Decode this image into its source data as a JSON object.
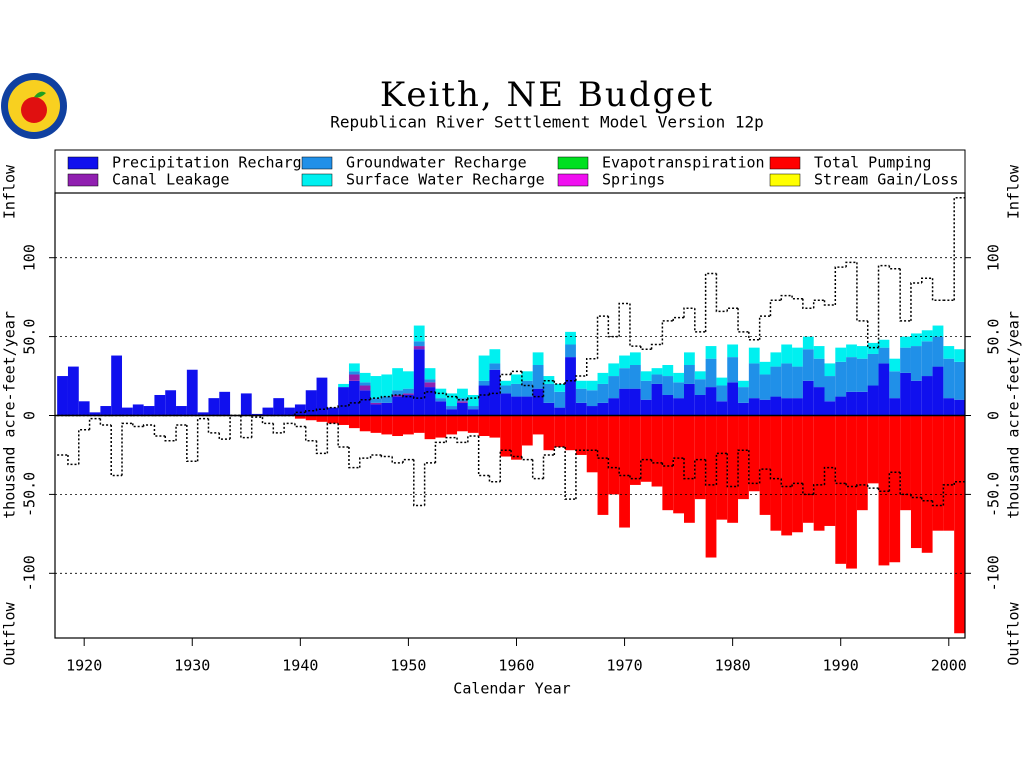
{
  "chart_data": {
    "type": "bar",
    "title": "Keith, NE Budget",
    "subtitle": "Republican River Settlement Model Version 12p",
    "xlabel": "Calendar Year",
    "ylabel": "thousand acre-feet/year",
    "inflow_label": "Inflow",
    "outflow_label": "Outflow",
    "x": [
      1918,
      1919,
      1920,
      1921,
      1922,
      1923,
      1924,
      1925,
      1926,
      1927,
      1928,
      1929,
      1930,
      1931,
      1932,
      1933,
      1934,
      1935,
      1936,
      1937,
      1938,
      1939,
      1940,
      1941,
      1942,
      1943,
      1944,
      1945,
      1946,
      1947,
      1948,
      1949,
      1950,
      1951,
      1952,
      1953,
      1954,
      1955,
      1956,
      1957,
      1958,
      1959,
      1960,
      1961,
      1962,
      1963,
      1964,
      1965,
      1966,
      1967,
      1968,
      1969,
      1970,
      1971,
      1972,
      1973,
      1974,
      1975,
      1976,
      1977,
      1978,
      1979,
      1980,
      1981,
      1982,
      1983,
      1984,
      1985,
      1986,
      1987,
      1988,
      1989,
      1990,
      1991,
      1992,
      1993,
      1994,
      1995,
      1996,
      1997,
      1998,
      1999,
      2000,
      2001
    ],
    "xlim": [
      1917.3,
      2001.5
    ],
    "xticks": [
      1920,
      1930,
      1940,
      1950,
      1960,
      1970,
      1980,
      1990,
      2000
    ],
    "ylim": [
      -141,
      141
    ],
    "yticks": [
      -100,
      {
        "value": -50,
        "label": "-50.0"
      },
      0,
      {
        "value": 50,
        "label": "50.0"
      },
      100
    ],
    "grid": true,
    "series": [
      {
        "name": "Precipitation Recharge",
        "color": "#1010ee",
        "values": [
          25,
          31,
          9,
          2,
          6,
          38,
          5,
          7,
          6,
          13,
          16,
          6,
          29,
          2,
          11,
          15,
          0,
          14,
          1,
          5,
          11,
          5,
          7,
          16,
          24,
          5,
          18,
          22,
          16,
          7,
          8,
          12,
          13,
          42,
          18,
          9,
          4,
          8,
          4,
          19,
          29,
          14,
          12,
          12,
          17,
          8,
          5,
          37,
          8,
          6,
          8,
          11,
          17,
          17,
          10,
          20,
          13,
          11,
          20,
          13,
          18,
          9,
          21,
          8,
          11,
          10,
          12,
          11,
          11,
          22,
          18,
          9,
          12,
          15,
          15,
          19,
          33,
          11,
          27,
          22,
          25,
          31,
          11,
          10
        ]
      },
      {
        "name": "Canal Leakage",
        "color": "#9020b0",
        "values": [
          0,
          0,
          0,
          0,
          0,
          0,
          0,
          0,
          0,
          0,
          0,
          0,
          0,
          0,
          0,
          0,
          0,
          0,
          0,
          0,
          0,
          0,
          0,
          0,
          0,
          0,
          0,
          4,
          3,
          1,
          0,
          1,
          1,
          2,
          3,
          0,
          0,
          1,
          0,
          0,
          0,
          0,
          0,
          0,
          0,
          0,
          0,
          0,
          0,
          0,
          0,
          0,
          0,
          0,
          0,
          0,
          0,
          0,
          0,
          0,
          0,
          0,
          0,
          0,
          0,
          0,
          0,
          0,
          0,
          0,
          0,
          0,
          0,
          0,
          0,
          0,
          0,
          0,
          0,
          0,
          0,
          0,
          0,
          0
        ]
      },
      {
        "name": "Groundwater Recharge",
        "color": "#2090e8",
        "values": [
          0,
          0,
          0,
          0,
          0,
          0,
          0,
          0,
          0,
          0,
          0,
          0,
          0,
          0,
          0,
          0,
          0,
          0,
          0,
          0,
          0,
          0,
          0,
          0,
          0,
          0,
          0,
          2,
          2,
          3,
          4,
          3,
          3,
          3,
          2,
          2,
          2,
          2,
          2,
          3,
          4,
          5,
          8,
          10,
          15,
          12,
          10,
          8,
          9,
          10,
          12,
          14,
          13,
          15,
          12,
          6,
          12,
          10,
          12,
          10,
          18,
          10,
          16,
          10,
          22,
          16,
          19,
          22,
          20,
          20,
          18,
          16,
          22,
          22,
          21,
          20,
          10,
          17,
          16,
          22,
          22,
          19,
          25,
          24
        ]
      },
      {
        "name": "Surface Water Recharge",
        "color": "#00f0f0",
        "values": [
          0,
          0,
          0,
          0,
          0,
          0,
          0,
          0,
          0,
          0,
          0,
          0,
          0,
          0,
          0,
          0,
          0,
          0,
          0,
          0,
          0,
          0,
          0,
          0,
          0,
          0,
          2,
          5,
          6,
          14,
          14,
          14,
          11,
          10,
          7,
          6,
          8,
          6,
          7,
          16,
          9,
          3,
          6,
          6,
          8,
          5,
          5,
          8,
          5,
          6,
          7,
          8,
          8,
          8,
          6,
          4,
          7,
          6,
          8,
          5,
          8,
          5,
          8,
          4,
          10,
          8,
          9,
          12,
          12,
          8,
          8,
          8,
          9,
          8,
          8,
          7,
          5,
          8,
          7,
          8,
          7,
          7,
          8,
          8
        ]
      },
      {
        "name": "Evapotranspiration",
        "color": "#00e020",
        "values": [
          0,
          0,
          0,
          0,
          0,
          0,
          0,
          0,
          0,
          0,
          0,
          0,
          0,
          0,
          0,
          0,
          0,
          0,
          0,
          0,
          0,
          0,
          0,
          0,
          0,
          0,
          0,
          0,
          0,
          0,
          0,
          0,
          0,
          0,
          0,
          0,
          0,
          0,
          0,
          0,
          0,
          0,
          0,
          0,
          0,
          0,
          0,
          0,
          0,
          0,
          0,
          0,
          0,
          0,
          0,
          0,
          0,
          0,
          0,
          0,
          0,
          0,
          0,
          0,
          0,
          0,
          0,
          0,
          0,
          0,
          0,
          0,
          0,
          0,
          0,
          0,
          0,
          0,
          0,
          0,
          0,
          0,
          0,
          0
        ]
      },
      {
        "name": "Springs",
        "color": "#f010f0",
        "values": [
          0,
          0,
          0,
          0,
          0,
          0,
          0,
          0,
          0,
          0,
          0,
          0,
          0,
          0,
          0,
          0,
          0,
          0,
          0,
          0,
          0,
          0,
          0,
          0,
          0,
          0,
          0,
          0,
          0,
          0,
          0,
          0,
          0,
          0,
          0,
          0,
          0,
          0,
          0,
          0,
          0,
          0,
          0,
          0,
          0,
          0,
          0,
          0,
          0,
          0,
          0,
          0,
          0,
          0,
          0,
          0,
          0,
          0,
          0,
          0,
          0,
          0,
          0,
          0,
          0,
          0,
          0,
          0,
          0,
          0,
          0,
          0,
          0,
          0,
          0,
          0,
          0,
          0,
          0,
          0,
          0,
          0,
          0,
          0
        ]
      },
      {
        "name": "Total Pumping",
        "color": "#ff0000",
        "values": [
          0,
          0,
          0,
          0,
          0,
          0,
          0,
          0,
          0,
          0,
          0,
          0,
          0,
          0,
          0,
          0,
          0,
          0,
          0,
          0,
          0,
          0,
          -2,
          -3,
          -4,
          -5,
          -6,
          -8,
          -10,
          -11,
          -12,
          -13,
          -12,
          -11,
          -15,
          -14,
          -12,
          -10,
          -11,
          -13,
          -14,
          -26,
          -28,
          -19,
          -12,
          -22,
          -20,
          -22,
          -25,
          -36,
          -63,
          -50,
          -71,
          -44,
          -42,
          -45,
          -60,
          -62,
          -68,
          -53,
          -90,
          -66,
          -68,
          -53,
          -48,
          -63,
          -73,
          -76,
          -74,
          -68,
          -73,
          -70,
          -94,
          -97,
          -60,
          -43,
          -95,
          -93,
          -60,
          -84,
          -87,
          -73,
          -73,
          -138
        ]
      },
      {
        "name": "Stream Gain/Loss",
        "color": "#ffff00",
        "values": [
          0,
          0,
          0,
          0,
          0,
          0,
          0,
          0,
          0,
          0,
          0,
          0,
          0,
          0,
          0,
          0,
          0,
          0,
          0,
          0,
          0,
          0,
          0,
          0,
          0,
          0,
          0,
          0,
          0,
          0,
          0,
          0,
          0,
          0,
          0,
          0,
          0,
          0,
          0,
          0,
          0,
          0,
          0,
          0,
          0,
          0,
          0,
          0,
          0,
          0,
          0,
          0,
          0,
          0,
          0,
          0,
          0,
          0,
          0,
          0,
          0,
          0,
          0,
          0,
          0,
          0,
          0,
          0,
          0,
          0,
          0,
          0,
          0,
          0,
          0,
          0,
          0,
          0,
          0,
          0,
          0,
          0,
          0,
          0
        ]
      }
    ]
  }
}
